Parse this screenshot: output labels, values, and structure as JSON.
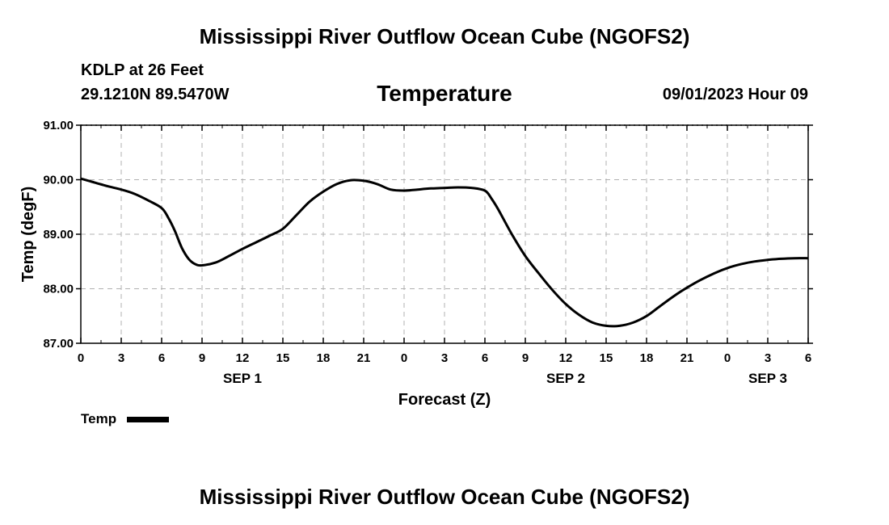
{
  "header": {
    "title": "Mississippi River Outflow Ocean Cube (NGOFS2)",
    "station": "KDLP at 26 Feet",
    "coords": "29.1210N  89.5470W",
    "timestamp": "09/01/2023 Hour 09"
  },
  "footer": {
    "title": "Mississippi River Outflow Ocean Cube (NGOFS2)"
  },
  "legend": {
    "label": "Temp",
    "color": "#000000"
  },
  "chart_data": {
    "type": "line",
    "title": "Temperature",
    "xlabel": "Forecast (Z)",
    "ylabel": "Temp (degF)",
    "xlim": [
      0,
      54
    ],
    "ylim": [
      87.0,
      91.0
    ],
    "grid": true,
    "x_ticks": [
      0,
      3,
      6,
      9,
      12,
      15,
      18,
      21,
      24,
      27,
      30,
      33,
      36,
      39,
      42,
      45,
      48,
      51,
      54
    ],
    "x_tick_labels": [
      "0",
      "3",
      "6",
      "9",
      "12",
      "15",
      "18",
      "21",
      "0",
      "3",
      "6",
      "9",
      "12",
      "15",
      "18",
      "21",
      "0",
      "3",
      "6"
    ],
    "y_ticks": [
      87.0,
      88.0,
      89.0,
      90.0,
      91.0
    ],
    "y_tick_labels": [
      "87.00",
      "88.00",
      "89.00",
      "90.00",
      "91.00"
    ],
    "date_labels": [
      {
        "label": "SEP 1",
        "at_hour": 12
      },
      {
        "label": "SEP 2",
        "at_hour": 36
      },
      {
        "label": "SEP 3",
        "at_hour": 51
      }
    ],
    "series": [
      {
        "name": "Temp",
        "color": "#000000",
        "x": [
          0,
          1,
          2,
          3,
          4,
          5,
          6,
          6.5,
          7,
          7.5,
          8,
          8.5,
          9,
          10,
          11,
          12,
          13,
          14,
          15,
          16,
          17,
          18,
          19,
          20,
          21,
          22,
          23,
          24,
          25,
          26,
          27,
          28,
          29,
          30,
          30.5,
          31,
          32,
          33,
          34,
          35,
          36,
          37,
          38,
          39,
          40,
          41,
          42,
          43,
          44,
          45,
          46,
          47,
          48,
          49,
          50,
          51,
          52,
          53,
          54
        ],
        "values": [
          90.02,
          89.95,
          89.88,
          89.82,
          89.74,
          89.62,
          89.48,
          89.3,
          89.05,
          88.75,
          88.55,
          88.45,
          88.43,
          88.48,
          88.6,
          88.73,
          88.85,
          88.97,
          89.1,
          89.35,
          89.6,
          89.78,
          89.92,
          89.99,
          89.98,
          89.92,
          89.82,
          89.8,
          89.82,
          89.84,
          89.85,
          89.86,
          89.85,
          89.8,
          89.65,
          89.45,
          89.0,
          88.6,
          88.28,
          87.98,
          87.72,
          87.52,
          87.38,
          87.32,
          87.32,
          87.38,
          87.5,
          87.68,
          87.86,
          88.02,
          88.16,
          88.28,
          88.38,
          88.45,
          88.5,
          88.53,
          88.55,
          88.56,
          88.56
        ]
      }
    ]
  }
}
